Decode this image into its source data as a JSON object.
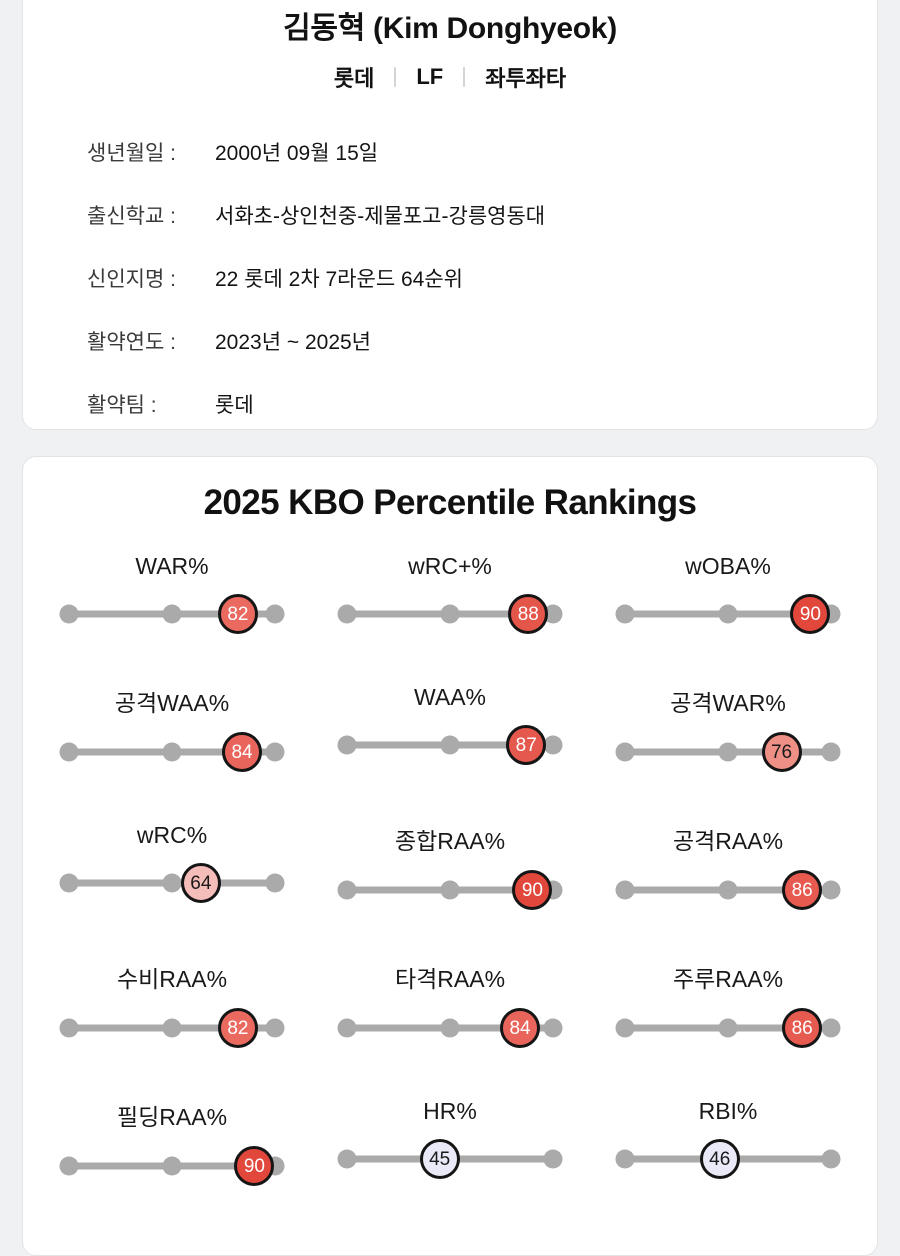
{
  "player": {
    "name": "김동혁 (Kim Donghyeok)",
    "meta": [
      "롯데",
      "LF",
      "좌투좌타"
    ],
    "info": [
      {
        "label": "생년월일 :",
        "value": "2000년 09월 15일"
      },
      {
        "label": "출신학교 :",
        "value": "서화초-상인천중-제물포고-강릉영동대"
      },
      {
        "label": "신인지명 :",
        "value": "22 롯데 2차 7라운드 64순위"
      },
      {
        "label": "활약연도 :",
        "value": "2023년 ~ 2025년"
      },
      {
        "label": "활약팀 :",
        "value": "롯데"
      }
    ]
  },
  "rankings": {
    "title": "2025 KBO Percentile Rankings",
    "track_color": "#aaaaaa",
    "metrics": [
      {
        "label": "WAR%",
        "value": 82,
        "color": "#ea6a60",
        "text_color": "#ffffff"
      },
      {
        "label": "wRC+%",
        "value": 88,
        "color": "#e4554a",
        "text_color": "#ffffff"
      },
      {
        "label": "wOBA%",
        "value": 90,
        "color": "#e2473c",
        "text_color": "#ffffff"
      },
      {
        "label": "공격WAA%",
        "value": 84,
        "color": "#e9655b",
        "text_color": "#ffffff"
      },
      {
        "label": "WAA%",
        "value": 87,
        "color": "#e4584e",
        "text_color": "#ffffff"
      },
      {
        "label": "공격WAR%",
        "value": 76,
        "color": "#ef9086",
        "text_color": "#1a1a1a"
      },
      {
        "label": "wRC%",
        "value": 64,
        "color": "#f5bdb9",
        "text_color": "#1a1a1a"
      },
      {
        "label": "종합RAA%",
        "value": 90,
        "color": "#e2473c",
        "text_color": "#ffffff"
      },
      {
        "label": "공격RAA%",
        "value": 86,
        "color": "#e75a50",
        "text_color": "#ffffff"
      },
      {
        "label": "수비RAA%",
        "value": 82,
        "color": "#ea6a60",
        "text_color": "#ffffff"
      },
      {
        "label": "타격RAA%",
        "value": 84,
        "color": "#e9655b",
        "text_color": "#ffffff"
      },
      {
        "label": "주루RAA%",
        "value": 86,
        "color": "#e75a50",
        "text_color": "#ffffff"
      },
      {
        "label": "필딩RAA%",
        "value": 90,
        "color": "#e2473c",
        "text_color": "#ffffff"
      },
      {
        "label": "HR%",
        "value": 45,
        "color": "#e9e9f8",
        "text_color": "#1a1a1a"
      },
      {
        "label": "RBI%",
        "value": 46,
        "color": "#e9e9f8",
        "text_color": "#1a1a1a"
      }
    ]
  }
}
